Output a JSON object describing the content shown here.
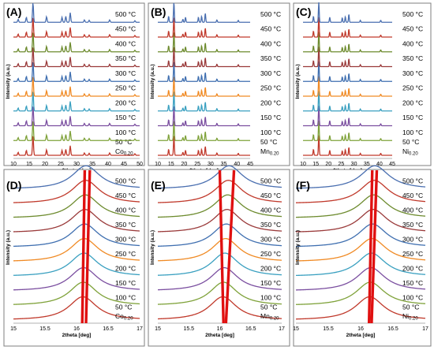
{
  "chart_data": [
    {
      "panel": "(A)",
      "type": "line",
      "sample": "Co0.20",
      "sample_base": "Co",
      "sample_sub": "0.20",
      "xlabel": "2theta [deg]",
      "ylabel": "Intensity (a.u.)",
      "xlim": [
        10,
        50
      ],
      "xticks": [
        10,
        15,
        20,
        25,
        30,
        35,
        40,
        45,
        50
      ],
      "series": [
        {
          "name": "50 °C",
          "color": "#c0392b"
        },
        {
          "name": "100 °C",
          "color": "#7fa23a"
        },
        {
          "name": "150 °C",
          "color": "#7b4fa0"
        },
        {
          "name": "200 °C",
          "color": "#3aa0c0"
        },
        {
          "name": "250 °C",
          "color": "#f08a24"
        },
        {
          "name": "300 °C",
          "color": "#3f6fb0"
        },
        {
          "name": "350 °C",
          "color": "#9a3a3a"
        },
        {
          "name": "400 °C",
          "color": "#6d8b2e"
        },
        {
          "name": "450 °C",
          "color": "#c0392b"
        },
        {
          "name": "500 °C",
          "color": "#4a6fb0"
        }
      ],
      "peaks": [
        {
          "x": 11.5,
          "h": 0.15
        },
        {
          "x": 14.1,
          "h": 0.25
        },
        {
          "x": 16.2,
          "h": 1.0
        },
        {
          "x": 20.5,
          "h": 0.28
        },
        {
          "x": 25.4,
          "h": 0.25
        },
        {
          "x": 26.6,
          "h": 0.3
        },
        {
          "x": 28.0,
          "h": 0.48
        },
        {
          "x": 32.5,
          "h": 0.12
        },
        {
          "x": 34.0,
          "h": 0.1
        },
        {
          "x": 40.5,
          "h": 0.12
        },
        {
          "x": 48.5,
          "h": 0.08
        }
      ],
      "peak_width": 0.22
    },
    {
      "panel": "(B)",
      "type": "line",
      "sample": "Mn0.20",
      "sample_base": "Mn",
      "sample_sub": "0.20",
      "xlabel": "2theta [deg]",
      "ylabel": "Intensity (a.u.)",
      "xlim": [
        10,
        45
      ],
      "xticks": [
        10,
        15,
        20,
        25,
        30,
        35,
        40,
        45
      ],
      "series": [
        {
          "name": "50 °C",
          "color": "#c0392b"
        },
        {
          "name": "100 °C",
          "color": "#7fa23a"
        },
        {
          "name": "150 °C",
          "color": "#7b4fa0"
        },
        {
          "name": "200 °C",
          "color": "#3aa0c0"
        },
        {
          "name": "250 °C",
          "color": "#f08a24"
        },
        {
          "name": "300 °C",
          "color": "#3f6fb0"
        },
        {
          "name": "350 °C",
          "color": "#9a3a3a"
        },
        {
          "name": "400 °C",
          "color": "#6d8b2e"
        },
        {
          "name": "450 °C",
          "color": "#c0392b"
        },
        {
          "name": "500 °C",
          "color": "#4a6fb0"
        }
      ],
      "peaks": [
        {
          "x": 14.1,
          "h": 0.3
        },
        {
          "x": 16.1,
          "h": 1.0
        },
        {
          "x": 19.5,
          "h": 0.15
        },
        {
          "x": 20.5,
          "h": 0.25
        },
        {
          "x": 25.4,
          "h": 0.25
        },
        {
          "x": 26.6,
          "h": 0.3
        },
        {
          "x": 28.0,
          "h": 0.45
        },
        {
          "x": 32.4,
          "h": 0.12
        },
        {
          "x": 40.5,
          "h": 0.1
        }
      ],
      "peak_width": 0.22
    },
    {
      "panel": "(C)",
      "type": "line",
      "sample": "Ni0.20",
      "sample_base": "Ni",
      "sample_sub": "0.20",
      "xlabel": "2theta [deg]",
      "ylabel": "Intensity (a.u.)",
      "xlim": [
        10,
        45
      ],
      "xticks": [
        10,
        15,
        20,
        25,
        30,
        35,
        40,
        45
      ],
      "series": [
        {
          "name": "50 °C",
          "color": "#c0392b"
        },
        {
          "name": "100 °C",
          "color": "#7fa23a"
        },
        {
          "name": "150 °C",
          "color": "#7b4fa0"
        },
        {
          "name": "200 °C",
          "color": "#3aa0c0"
        },
        {
          "name": "250 °C",
          "color": "#f08a24"
        },
        {
          "name": "300 °C",
          "color": "#3f6fb0"
        },
        {
          "name": "350 °C",
          "color": "#9a3a3a"
        },
        {
          "name": "400 °C",
          "color": "#6d8b2e"
        },
        {
          "name": "450 °C",
          "color": "#c0392b"
        },
        {
          "name": "500 °C",
          "color": "#4a6fb0"
        }
      ],
      "peaks": [
        {
          "x": 14.1,
          "h": 0.3
        },
        {
          "x": 16.2,
          "h": 1.0
        },
        {
          "x": 20.5,
          "h": 0.25
        },
        {
          "x": 25.4,
          "h": 0.22
        },
        {
          "x": 26.6,
          "h": 0.28
        },
        {
          "x": 28.0,
          "h": 0.4
        },
        {
          "x": 32.5,
          "h": 0.1
        },
        {
          "x": 40.5,
          "h": 0.1
        }
      ],
      "peak_width": 0.22
    },
    {
      "panel": "(D)",
      "type": "line",
      "sample": "Co0.20",
      "sample_base": "Co",
      "sample_sub": "0.20",
      "xlabel": "2theta [deg]",
      "ylabel": "Intensity (a.u.)",
      "xlim": [
        15,
        17
      ],
      "xticks": [
        15,
        15.5,
        16,
        16.5,
        17
      ],
      "series": [
        {
          "name": "50 °C",
          "color": "#c0392b"
        },
        {
          "name": "100 °C",
          "color": "#7fa23a"
        },
        {
          "name": "150 °C",
          "color": "#7b4fa0"
        },
        {
          "name": "200 °C",
          "color": "#3aa0c0"
        },
        {
          "name": "250 °C",
          "color": "#f08a24"
        },
        {
          "name": "300 °C",
          "color": "#3f6fb0"
        },
        {
          "name": "350 °C",
          "color": "#9a3a3a"
        },
        {
          "name": "400 °C",
          "color": "#6d8b2e"
        },
        {
          "name": "450 °C",
          "color": "#c0392b"
        },
        {
          "name": "500 °C",
          "color": "#4a6fb0"
        }
      ],
      "peak_position_start": 16.1,
      "peak_position_end": 16.15,
      "peak_width": 0.28,
      "guide_lines": [
        {
          "x": [
            16.09,
            16.13
          ]
        },
        {
          "x": [
            16.15,
            16.21
          ]
        }
      ]
    },
    {
      "panel": "(E)",
      "type": "line",
      "sample": "Mn0.20",
      "sample_base": "Mn",
      "sample_sub": "0.20",
      "xlabel": "2theta [deg]",
      "ylabel": "Intensity (a.u.)",
      "xlim": [
        15,
        17
      ],
      "xticks": [
        15,
        15.5,
        16,
        16.5,
        17
      ],
      "series": [
        {
          "name": "50 °C",
          "color": "#c0392b"
        },
        {
          "name": "100 °C",
          "color": "#7fa23a"
        },
        {
          "name": "150 °C",
          "color": "#7b4fa0"
        },
        {
          "name": "200 °C",
          "color": "#3aa0c0"
        },
        {
          "name": "250 °C",
          "color": "#f08a24"
        },
        {
          "name": "300 °C",
          "color": "#3f6fb0"
        },
        {
          "name": "350 °C",
          "color": "#9a3a3a"
        },
        {
          "name": "400 °C",
          "color": "#6d8b2e"
        },
        {
          "name": "450 °C",
          "color": "#c0392b"
        },
        {
          "name": "500 °C",
          "color": "#4a6fb0"
        }
      ],
      "peak_position_start": 16.05,
      "peak_position_end": 16.15,
      "peak_width": 0.28,
      "guide_lines": [
        {
          "x": [
            16.06,
            16.0
          ]
        },
        {
          "x": [
            16.1,
            16.23
          ]
        }
      ]
    },
    {
      "panel": "(F)",
      "type": "line",
      "sample": "Ni0.20",
      "sample_base": "Ni",
      "sample_sub": "0.20",
      "xlabel": "2theta [deg]",
      "ylabel": "Intensity (a.u.)",
      "xlim": [
        15,
        17
      ],
      "xticks": [
        15,
        15.5,
        16,
        16.5,
        17
      ],
      "series": [
        {
          "name": "50 °C",
          "color": "#c0392b"
        },
        {
          "name": "100 °C",
          "color": "#7fa23a"
        },
        {
          "name": "150 °C",
          "color": "#7b4fa0"
        },
        {
          "name": "200 °C",
          "color": "#3aa0c0"
        },
        {
          "name": "250 °C",
          "color": "#f08a24"
        },
        {
          "name": "300 °C",
          "color": "#3f6fb0"
        },
        {
          "name": "350 °C",
          "color": "#9a3a3a"
        },
        {
          "name": "400 °C",
          "color": "#6d8b2e"
        },
        {
          "name": "450 °C",
          "color": "#c0392b"
        },
        {
          "name": "500 °C",
          "color": "#4a6fb0"
        }
      ],
      "peak_position_start": 16.14,
      "peak_position_end": 16.22,
      "peak_width": 0.28,
      "guide_lines": [
        {
          "x": [
            16.13,
            16.18
          ]
        },
        {
          "x": [
            16.17,
            16.25
          ]
        }
      ]
    }
  ]
}
